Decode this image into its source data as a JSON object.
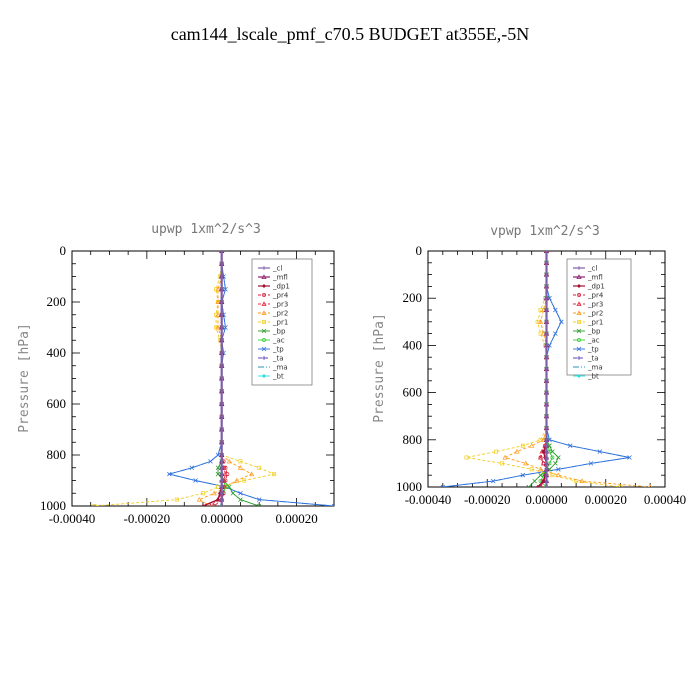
{
  "title": "cam144_lscale_pmf_c70.5  BUDGET at355E,-5N",
  "colors": {
    "_cl": "#7f5fa8",
    "_mfl": "#8b1a6b",
    "_dp1": "#a01030",
    "_pr4": "#d8203c",
    "_pr3": "#e8283c",
    "_pr2": "#ff9a1a",
    "_pr1": "#f2cc1a",
    "_bp": "#2a9a2a",
    "_ac": "#30cc30",
    "_tp": "#3070e0",
    "_ta": "#6040c0",
    "_ma": "#2a90b8",
    "_bt": "#20e0e0"
  },
  "chart_data": [
    {
      "type": "line",
      "title": "upwp  1xm^2/s^3",
      "ylabel": "Pressure [hPa]",
      "xlabel": "",
      "xlim": [
        -0.0004,
        0.0003
      ],
      "ylim": [
        1000,
        0
      ],
      "xticks": [
        "-0.00040",
        "-0.00020",
        "0.00000",
        "0.00020"
      ],
      "xtick_values": [
        -0.0004,
        -0.0002,
        0.0,
        0.0002
      ],
      "yticks": [
        "0",
        "200",
        "400",
        "600",
        "800",
        "1000"
      ],
      "ytick_values": [
        0,
        200,
        400,
        600,
        800,
        1000
      ],
      "legend": [
        "_cl",
        "_mfl",
        "_dp1",
        "_pr4",
        "_pr3",
        "_pr2",
        "_pr1",
        "_bp",
        "_ac",
        "_tp",
        "_ta",
        "_ma",
        "_bt"
      ],
      "legend_position": "top-right",
      "pressure": [
        0,
        50,
        100,
        150,
        200,
        250,
        300,
        350,
        400,
        450,
        500,
        550,
        600,
        650,
        700,
        750,
        800,
        825,
        850,
        875,
        900,
        925,
        950,
        975,
        1000
      ],
      "series": [
        {
          "name": "_cl",
          "values": [
            0,
            0,
            0,
            0,
            0,
            0,
            0,
            0,
            0,
            0,
            0,
            0,
            0,
            0,
            0,
            0,
            0,
            0,
            0,
            0,
            0,
            0,
            0,
            0,
            0
          ]
        },
        {
          "name": "_mfl",
          "values": [
            0,
            0,
            0,
            0,
            0,
            0,
            0,
            0,
            0,
            0,
            0,
            0,
            0,
            0,
            0,
            0,
            0,
            0,
            0,
            0,
            0,
            0,
            0,
            0,
            0
          ]
        },
        {
          "name": "_dp1",
          "values": [
            0,
            0,
            0,
            0,
            0,
            0,
            0,
            0,
            0,
            0,
            0,
            0,
            0,
            0,
            0,
            0,
            0,
            0,
            0,
            0,
            0,
            0,
            -5e-06,
            -1e-05,
            -5e-05
          ]
        },
        {
          "name": "_pr4",
          "values": [
            0,
            0,
            0,
            0,
            0,
            0,
            0,
            0,
            0,
            0,
            0,
            0,
            0,
            0,
            0,
            0,
            0,
            5e-06,
            1e-05,
            1.5e-05,
            1e-05,
            5e-06,
            5e-06,
            0,
            -2e-05
          ]
        },
        {
          "name": "_pr3",
          "values": [
            0,
            0,
            0,
            0,
            0,
            0,
            0,
            0,
            0,
            0,
            0,
            0,
            0,
            0,
            0,
            0,
            0,
            0,
            5e-06,
            1e-05,
            5e-06,
            0,
            0,
            -1e-05,
            -3e-05
          ]
        },
        {
          "name": "_pr2",
          "values": [
            0,
            0,
            0,
            -1e-05,
            -1e-05,
            -1e-05,
            -1e-05,
            0,
            0,
            0,
            0,
            0,
            0,
            0,
            0,
            0,
            0,
            2e-05,
            5e-05,
            8e-05,
            4e-05,
            1e-05,
            -2e-05,
            -6e-05,
            -3e-05
          ]
        },
        {
          "name": "_pr1",
          "values": [
            0,
            0,
            -5e-06,
            -1.5e-05,
            -1e-05,
            -1.5e-05,
            -1.5e-05,
            -5e-06,
            0,
            0,
            0,
            0,
            0,
            0,
            0,
            0,
            0,
            5e-05,
            0.0001,
            0.00014,
            6e-05,
            -1e-05,
            -5e-05,
            -0.00012,
            -0.00034
          ]
        },
        {
          "name": "_bp",
          "values": [
            0,
            0,
            0,
            0,
            0,
            0,
            0,
            0,
            0,
            0,
            0,
            0,
            0,
            0,
            0,
            0,
            0,
            0,
            -1e-05,
            -1e-05,
            5e-06,
            2e-05,
            3e-05,
            5e-05,
            0.0001
          ]
        },
        {
          "name": "_ac",
          "values": [
            0,
            0,
            0,
            0,
            0,
            0,
            0,
            0,
            0,
            0,
            0,
            0,
            0,
            0,
            0,
            0,
            0,
            0,
            0,
            0,
            5e-06,
            1e-05,
            5e-06,
            0,
            0
          ]
        },
        {
          "name": "_tp",
          "values": [
            0,
            0,
            5e-06,
            1e-05,
            0,
            5e-06,
            1e-05,
            0,
            5e-06,
            0,
            0,
            0,
            0,
            0,
            0,
            0,
            -1e-05,
            -3e-05,
            -8e-05,
            -0.00014,
            -7e-05,
            1e-05,
            5e-05,
            0.0001,
            0.0003
          ]
        },
        {
          "name": "_ta",
          "values": [
            0,
            0,
            0,
            0,
            0,
            0,
            0,
            0,
            0,
            0,
            0,
            0,
            0,
            0,
            0,
            0,
            0,
            0,
            0,
            0,
            0,
            0,
            0,
            0,
            0
          ]
        },
        {
          "name": "_ma",
          "values": [
            0,
            0,
            5e-06,
            1e-05,
            0,
            5e-06,
            1e-05,
            0,
            5e-06,
            0,
            0,
            0,
            0,
            0,
            0,
            0,
            -1e-05,
            -3e-05,
            -8e-05,
            -0.00014,
            -7e-05,
            1e-05,
            5e-05,
            0.0001,
            0.0003
          ]
        },
        {
          "name": "_bt",
          "values": [
            0,
            0,
            0,
            0,
            0,
            0,
            0,
            0,
            0,
            0,
            0,
            0,
            0,
            0,
            0,
            0,
            0,
            0,
            0,
            0,
            0,
            0,
            0,
            0,
            0
          ]
        }
      ]
    },
    {
      "type": "line",
      "title": "vpwp  1xm^2/s^3",
      "ylabel": "Pressure [hPa]",
      "xlabel": "",
      "xlim": [
        -0.0004,
        0.0004
      ],
      "ylim": [
        1000,
        0
      ],
      "xticks": [
        "-0.00040",
        "-0.00020",
        "0.00000",
        "0.00020",
        "0.00040"
      ],
      "xtick_values": [
        -0.0004,
        -0.0002,
        0.0,
        0.0002,
        0.0004
      ],
      "yticks": [
        "0",
        "200",
        "400",
        "600",
        "800",
        "1000"
      ],
      "ytick_values": [
        0,
        200,
        400,
        600,
        800,
        1000
      ],
      "legend": [
        "_cl",
        "_mfl",
        "_dp1",
        "_pr4",
        "_pr3",
        "_pr2",
        "_pr1",
        "_bp",
        "_ac",
        "_tp",
        "_ta",
        "_ma",
        "_bt"
      ],
      "legend_position": "top-right",
      "pressure": [
        0,
        50,
        100,
        150,
        200,
        250,
        300,
        350,
        400,
        450,
        500,
        550,
        600,
        650,
        700,
        750,
        800,
        825,
        850,
        875,
        900,
        925,
        950,
        975,
        1000
      ],
      "series": [
        {
          "name": "_cl",
          "values": [
            0,
            0,
            0,
            0,
            0,
            0,
            0,
            0,
            0,
            0,
            0,
            0,
            0,
            0,
            0,
            0,
            0,
            0,
            0,
            0,
            0,
            0,
            0,
            0,
            0
          ]
        },
        {
          "name": "_mfl",
          "values": [
            0,
            0,
            0,
            0,
            0,
            0,
            0,
            0,
            0,
            0,
            0,
            0,
            0,
            0,
            0,
            0,
            0,
            0,
            0,
            0,
            0,
            0,
            0,
            0,
            0
          ]
        },
        {
          "name": "_dp1",
          "values": [
            0,
            0,
            0,
            0,
            0,
            0,
            0,
            0,
            0,
            0,
            0,
            0,
            0,
            0,
            0,
            0,
            0,
            0,
            -1e-05,
            -5e-06,
            0,
            0,
            -5e-06,
            -1e-05,
            -3e-05
          ]
        },
        {
          "name": "_pr4",
          "values": [
            0,
            0,
            0,
            0,
            0,
            0,
            0,
            0,
            0,
            0,
            0,
            0,
            0,
            0,
            0,
            0,
            0,
            -5e-06,
            -1e-05,
            -2e-05,
            -1e-05,
            0,
            0,
            -1e-05,
            -2e-05
          ]
        },
        {
          "name": "_pr3",
          "values": [
            0,
            0,
            0,
            0,
            0,
            0,
            0,
            0,
            0,
            0,
            0,
            0,
            0,
            0,
            0,
            0,
            0,
            -5e-06,
            -1.5e-05,
            -2e-05,
            -1e-05,
            0,
            0,
            -1e-05,
            -2e-05
          ]
        },
        {
          "name": "_pr2",
          "values": [
            0,
            0,
            0,
            0,
            0,
            -1e-05,
            -2e-05,
            -1e-05,
            0,
            0,
            0,
            0,
            0,
            0,
            0,
            0,
            -1e-05,
            -5e-05,
            -0.0001,
            -0.00014,
            -7e-05,
            -2e-05,
            4e-05,
            0.00012,
            0.00035
          ]
        },
        {
          "name": "_pr1",
          "values": [
            0,
            0,
            0,
            0,
            -5e-06,
            -2e-05,
            -3e-05,
            -2e-05,
            -5e-06,
            0,
            0,
            0,
            0,
            0,
            0,
            0,
            -2e-05,
            -8e-05,
            -0.00017,
            -0.00027,
            -0.00015,
            -5e-05,
            2e-05,
            0.0001,
            0.00025
          ]
        },
        {
          "name": "_bp",
          "values": [
            0,
            0,
            0,
            0,
            0,
            0,
            0,
            0,
            0,
            0,
            0,
            0,
            0,
            0,
            0,
            0,
            0,
            1e-05,
            2e-05,
            4e-05,
            3e-05,
            1e-05,
            -2e-05,
            -4e-05,
            -6e-05
          ]
        },
        {
          "name": "_ac",
          "values": [
            0,
            0,
            0,
            0,
            0,
            0,
            0,
            0,
            0,
            0,
            0,
            0,
            0,
            0,
            0,
            0,
            0,
            5e-06,
            1e-05,
            2e-05,
            1e-05,
            0,
            -1e-05,
            -2e-05,
            0
          ]
        },
        {
          "name": "_tp",
          "values": [
            0,
            0,
            0,
            0,
            1e-05,
            3e-05,
            5e-05,
            3e-05,
            1e-05,
            0,
            0,
            0,
            0,
            0,
            0,
            0,
            1e-05,
            8e-05,
            0.00018,
            0.00028,
            0.00015,
            4e-05,
            -8e-05,
            -0.00018,
            -0.00035
          ]
        },
        {
          "name": "_ta",
          "values": [
            0,
            0,
            0,
            0,
            0,
            0,
            0,
            0,
            0,
            0,
            0,
            0,
            0,
            0,
            0,
            0,
            0,
            0,
            0,
            0,
            0,
            0,
            0,
            0,
            0
          ]
        },
        {
          "name": "_ma",
          "values": [
            0,
            0,
            0,
            0,
            1e-05,
            3e-05,
            5e-05,
            3e-05,
            1e-05,
            0,
            0,
            0,
            0,
            0,
            0,
            0,
            1e-05,
            8e-05,
            0.00018,
            0.00028,
            0.00015,
            4e-05,
            -8e-05,
            -0.00018,
            -0.00035
          ]
        },
        {
          "name": "_bt",
          "values": [
            0,
            0,
            0,
            0,
            0,
            0,
            0,
            0,
            0,
            0,
            0,
            0,
            0,
            0,
            0,
            0,
            0,
            0,
            0,
            0,
            0,
            0,
            0,
            0,
            0
          ]
        }
      ]
    }
  ]
}
